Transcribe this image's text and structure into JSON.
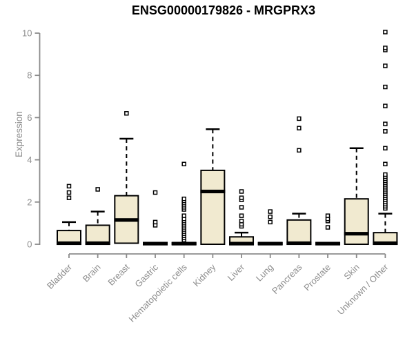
{
  "chart_data": {
    "type": "boxplot",
    "title": "ENSG00000179826 - MRGPRX3",
    "ylabel": "Expression",
    "xlabel": "",
    "ylim": [
      0,
      10
    ],
    "y_ticks": [
      0,
      2,
      4,
      6,
      8,
      10
    ],
    "grid": false,
    "legend": false,
    "categories": [
      "Bladder",
      "Brain",
      "Breast",
      "Gastric",
      "Hematopoietic cells",
      "Kidney",
      "Liver",
      "Lung",
      "Pancreas",
      "Prostate",
      "Skin",
      "Unknown / Other"
    ],
    "series": [
      {
        "label": "Bladder",
        "q1": 0,
        "median": 0.05,
        "q3": 0.65,
        "whisker_high": 1.05,
        "outliers": [
          2.2,
          2.45,
          2.75
        ]
      },
      {
        "label": "Brain",
        "q1": 0,
        "median": 0.05,
        "q3": 0.9,
        "whisker_high": 1.55,
        "outliers": [
          2.6
        ]
      },
      {
        "label": "Breast",
        "q1": 0.05,
        "median": 1.15,
        "q3": 2.3,
        "whisker_high": 5.0,
        "outliers": [
          6.2
        ]
      },
      {
        "label": "Gastric",
        "q1": 0,
        "median": 0.03,
        "q3": 0.06,
        "whisker_high": 0.06,
        "outliers": [
          0.9,
          1.05,
          2.45
        ]
      },
      {
        "label": "Hematopoietic cells",
        "q1": 0,
        "median": 0.03,
        "q3": 0.06,
        "whisker_high": 0.06,
        "outliers": [
          0.2,
          0.3,
          0.4,
          0.5,
          0.6,
          0.7,
          0.8,
          0.9,
          1.0,
          1.1,
          1.2,
          1.35,
          1.65,
          1.75,
          1.85,
          1.95,
          2.05,
          2.15,
          3.8
        ]
      },
      {
        "label": "Kidney",
        "q1": 0,
        "median": 2.5,
        "q3": 3.5,
        "whisker_high": 5.45,
        "outliers": []
      },
      {
        "label": "Liver",
        "q1": 0,
        "median": 0.03,
        "q3": 0.35,
        "whisker_high": 0.55,
        "outliers": [
          0.85,
          0.95,
          1.1,
          1.35,
          1.75,
          2.1,
          2.2,
          2.5
        ]
      },
      {
        "label": "Lung",
        "q1": 0,
        "median": 0.03,
        "q3": 0.06,
        "whisker_high": 0.06,
        "outliers": [
          1.05,
          1.3,
          1.55
        ]
      },
      {
        "label": "Pancreas",
        "q1": 0,
        "median": 0.05,
        "q3": 1.15,
        "whisker_high": 1.45,
        "outliers": [
          4.45,
          5.5,
          5.95
        ]
      },
      {
        "label": "Prostate",
        "q1": 0,
        "median": 0.03,
        "q3": 0.06,
        "whisker_high": 0.06,
        "outliers": [
          0.8,
          1.1,
          1.2,
          1.35
        ]
      },
      {
        "label": "Skin",
        "q1": 0,
        "median": 0.5,
        "q3": 2.15,
        "whisker_high": 4.55,
        "outliers": []
      },
      {
        "label": "Unknown / Other",
        "q1": 0,
        "median": 0.05,
        "q3": 0.55,
        "whisker_high": 1.45,
        "outliers": [
          1.7,
          1.8,
          1.9,
          2.0,
          2.1,
          2.2,
          2.3,
          2.4,
          2.5,
          2.6,
          2.7,
          2.8,
          2.9,
          3.0,
          3.1,
          3.2,
          3.3,
          3.8,
          4.55,
          5.35,
          5.7,
          6.55,
          7.45,
          8.45,
          9.2,
          9.3,
          10.05
        ]
      }
    ],
    "colors": {
      "box_fill": "#F1EAD0",
      "box_stroke": "#000000",
      "median": "#000000",
      "outlier_stroke": "#000000",
      "outlier_fill": "#FFFFFF",
      "axis": "#8B8B8B",
      "tick_label": "#8D8D8D",
      "title": "#000000",
      "background": "#FFFFFF"
    }
  }
}
